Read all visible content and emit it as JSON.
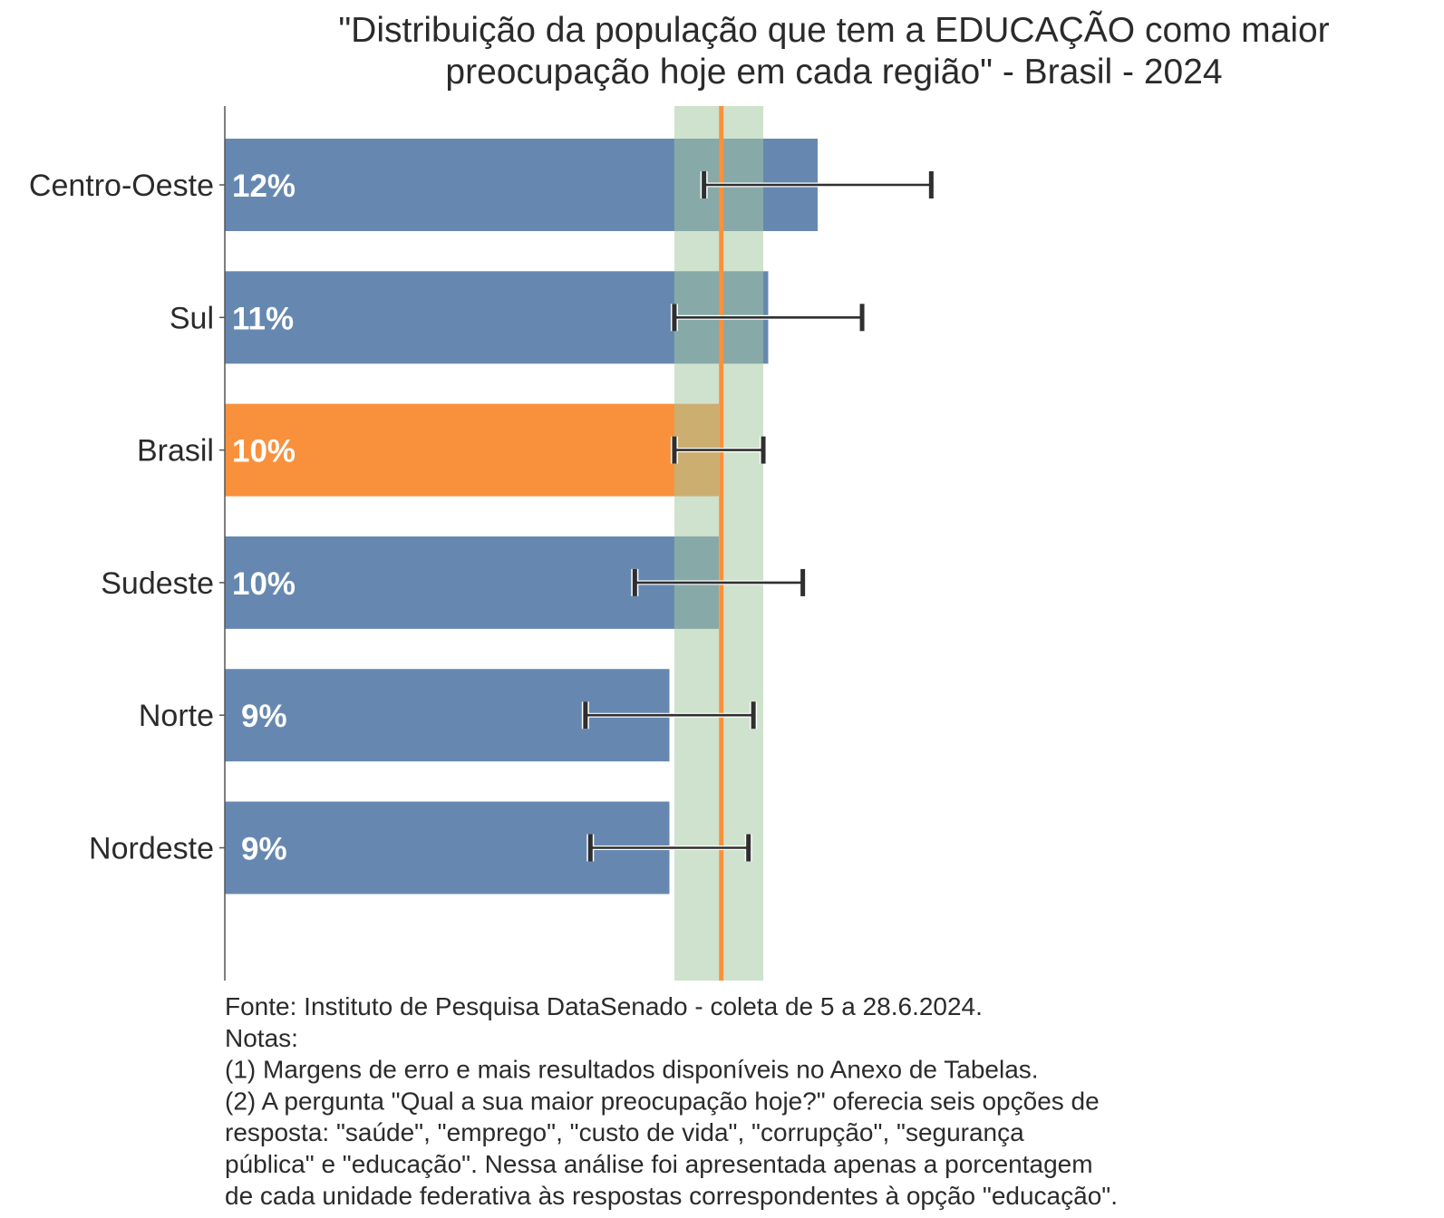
{
  "chart_data": {
    "type": "bar",
    "orientation": "horizontal",
    "title": "\"Distribuição da população que tem a EDUCAÇÃO como maior preocupação hoje em cada região\" - Brasil - 2024",
    "title_lines": [
      "\"Distribuição da população que tem a EDUCAÇÃO como maior",
      "preocupação hoje em cada região\" - Brasil - 2024"
    ],
    "categories": [
      "Centro-Oeste",
      "Sul",
      "Brasil",
      "Sudeste",
      "Norte",
      "Nordeste"
    ],
    "values": [
      12.0,
      11.0,
      10.0,
      10.0,
      9.0,
      9.0
    ],
    "data_labels": [
      "12%",
      "11%",
      "10%",
      "10%",
      "9%",
      "9%"
    ],
    "error_low": [
      9.7,
      9.1,
      9.1,
      8.3,
      7.3,
      7.4
    ],
    "error_high": [
      14.3,
      12.9,
      10.9,
      11.7,
      10.7,
      10.6
    ],
    "reference_line": 10.05,
    "reference_band": [
      9.1,
      10.9
    ],
    "xlim": [
      0,
      25
    ],
    "x_axis_shown": false,
    "grid": false,
    "colors": {
      "bar": "#6688b0",
      "highlight_bar": "#f9913c",
      "highlight_category": "Brasil",
      "reference_line": "#f9913c",
      "band": "#a5c8a0",
      "error_bar": "#2f2f2f"
    },
    "footer": [
      "Fonte: Instituto de Pesquisa DataSenado - coleta de 5 a 28.6.2024.",
      "Notas:",
      "(1) Margens de erro e mais resultados disponíveis no Anexo de Tabelas.",
      "(2) A pergunta \"Qual a sua maior preocupação hoje?\" oferecia seis opções de",
      "resposta: \"saúde\", \"emprego\", \"custo de vida\", \"corrupção\", \"segurança",
      "pública\" e \"educação\". Nessa análise foi apresentada apenas a porcentagem",
      "de cada unidade federativa às respostas correspondentes à opção \"educação\"."
    ]
  }
}
